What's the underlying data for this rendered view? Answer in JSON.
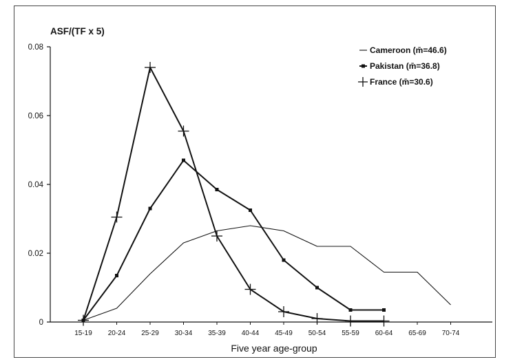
{
  "chart_data": {
    "type": "line",
    "ytitle": "ASF/(TF x 5)",
    "xlabel": "Five year age-group",
    "categories": [
      "15-19",
      "20-24",
      "25-29",
      "30-34",
      "35-39",
      "40-44",
      "45-49",
      "50-54",
      "55-59",
      "60-64",
      "65-69",
      "70-74"
    ],
    "ylim": [
      0,
      0.08
    ],
    "yticks": [
      0,
      0.02,
      0.04,
      0.06,
      0.08
    ],
    "ytick_labels": [
      "0",
      "0.02",
      "0.04",
      "0.06",
      "0.08"
    ],
    "grid": false,
    "legend_position": "top-right",
    "series": [
      {
        "name": "Cameroon (m̄=46.6)",
        "marker": "none",
        "values": [
          0.0005,
          0.004,
          0.014,
          0.023,
          0.0265,
          0.028,
          0.0265,
          0.022,
          0.022,
          0.0145,
          0.0145,
          0.005
        ]
      },
      {
        "name": "Pakistan (m̄=36.8)",
        "marker": "square",
        "values": [
          0.0005,
          0.0135,
          0.033,
          0.047,
          0.0385,
          0.0325,
          0.018,
          0.01,
          0.0035,
          0.0035,
          null,
          null
        ]
      },
      {
        "name": "France (m̄=30.6)",
        "marker": "plus",
        "values": [
          0.0005,
          0.0305,
          0.074,
          0.0555,
          0.025,
          0.0095,
          0.003,
          0.001,
          0.0003,
          0.0003,
          null,
          null
        ]
      }
    ]
  }
}
